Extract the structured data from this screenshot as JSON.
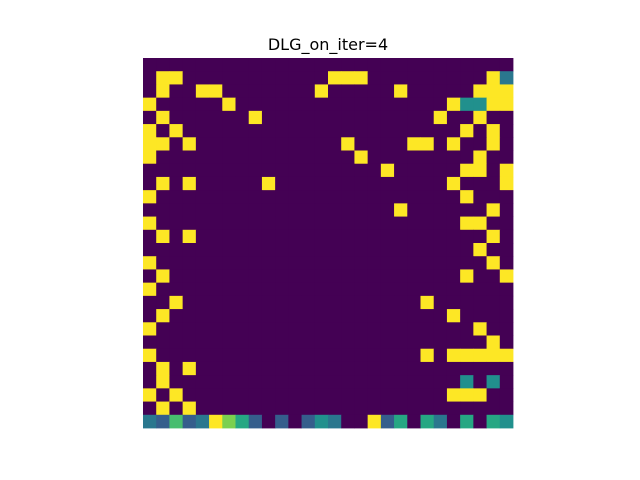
{
  "chart_data": {
    "type": "heatmap",
    "title": "DLG_on_iter=4",
    "xlabel": "",
    "ylabel": "",
    "axes_visible": false,
    "colormap": "viridis",
    "value_range": [
      0,
      1
    ],
    "rows": 28,
    "cols": 28,
    "values": [
      [
        0.0,
        0.0,
        0.0,
        0.0,
        0.0,
        0.0,
        0.0,
        0.0,
        0.0,
        0.0,
        0.0,
        0.0,
        0.0,
        0.0,
        0.0,
        0.0,
        0.0,
        0.0,
        0.0,
        0.0,
        0.0,
        0.0,
        0.0,
        0.0,
        0.0,
        0.0,
        0.0,
        0.0
      ],
      [
        0.0,
        1.0,
        1.0,
        0.0,
        0.0,
        0.0,
        0.0,
        0.0,
        0.0,
        0.0,
        0.0,
        0.0,
        0.0,
        0.0,
        1.0,
        1.0,
        1.0,
        0.0,
        0.0,
        0.0,
        0.0,
        0.0,
        0.0,
        0.0,
        0.0,
        0.0,
        1.0,
        0.4
      ],
      [
        0.0,
        1.0,
        0.0,
        0.0,
        1.0,
        1.0,
        0.0,
        0.0,
        0.0,
        0.0,
        0.0,
        0.0,
        0.0,
        1.0,
        0.0,
        0.0,
        0.0,
        0.0,
        0.0,
        1.0,
        0.0,
        0.0,
        0.0,
        0.0,
        0.0,
        1.0,
        1.0,
        1.0
      ],
      [
        1.0,
        0.0,
        0.0,
        0.0,
        0.0,
        0.0,
        1.0,
        0.0,
        0.0,
        0.0,
        0.0,
        0.0,
        0.0,
        0.0,
        0.0,
        0.0,
        0.0,
        0.0,
        0.0,
        0.0,
        0.0,
        0.0,
        0.0,
        1.0,
        0.5,
        0.5,
        1.0,
        1.0
      ],
      [
        0.0,
        1.0,
        0.0,
        0.0,
        0.0,
        0.0,
        0.0,
        0.0,
        1.0,
        0.0,
        0.0,
        0.0,
        0.0,
        0.0,
        0.0,
        0.0,
        0.0,
        0.0,
        0.0,
        0.0,
        0.0,
        0.0,
        1.0,
        0.0,
        0.0,
        1.0,
        0.0,
        0.0
      ],
      [
        1.0,
        0.0,
        1.0,
        0.0,
        0.0,
        0.0,
        0.0,
        0.0,
        0.0,
        0.0,
        0.0,
        0.0,
        0.0,
        0.0,
        0.0,
        0.0,
        0.0,
        0.0,
        0.0,
        0.0,
        0.0,
        0.0,
        0.0,
        0.0,
        1.0,
        0.0,
        1.0,
        0.0
      ],
      [
        1.0,
        1.0,
        0.0,
        1.0,
        0.0,
        0.0,
        0.0,
        0.0,
        0.0,
        0.0,
        0.0,
        0.0,
        0.0,
        0.0,
        0.0,
        1.0,
        0.0,
        0.0,
        0.0,
        0.0,
        1.0,
        1.0,
        0.0,
        1.0,
        0.0,
        0.0,
        1.0,
        0.0
      ],
      [
        1.0,
        0.0,
        0.0,
        0.0,
        0.0,
        0.0,
        0.0,
        0.0,
        0.0,
        0.0,
        0.0,
        0.0,
        0.0,
        0.0,
        0.0,
        0.0,
        1.0,
        0.0,
        0.0,
        0.0,
        0.0,
        0.0,
        0.0,
        0.0,
        0.0,
        1.0,
        0.0,
        0.0
      ],
      [
        0.0,
        0.0,
        0.0,
        0.0,
        0.0,
        0.0,
        0.0,
        0.0,
        0.0,
        0.0,
        0.0,
        0.0,
        0.0,
        0.0,
        0.0,
        0.0,
        0.0,
        0.0,
        1.0,
        0.0,
        0.0,
        0.0,
        0.0,
        0.0,
        1.0,
        1.0,
        0.0,
        1.0
      ],
      [
        0.0,
        1.0,
        0.0,
        1.0,
        0.0,
        0.0,
        0.0,
        0.0,
        0.0,
        1.0,
        0.0,
        0.0,
        0.0,
        0.0,
        0.0,
        0.0,
        0.0,
        0.0,
        0.0,
        0.0,
        0.0,
        0.0,
        0.0,
        1.0,
        0.0,
        0.0,
        0.0,
        1.0
      ],
      [
        1.0,
        0.0,
        0.0,
        0.0,
        0.0,
        0.0,
        0.0,
        0.0,
        0.0,
        0.0,
        0.0,
        0.0,
        0.0,
        0.0,
        0.0,
        0.0,
        0.0,
        0.0,
        0.0,
        0.0,
        0.0,
        0.0,
        0.0,
        0.0,
        1.0,
        0.0,
        0.0,
        0.0
      ],
      [
        0.0,
        0.0,
        0.0,
        0.0,
        0.0,
        0.0,
        0.0,
        0.0,
        0.0,
        0.0,
        0.0,
        0.0,
        0.0,
        0.0,
        0.0,
        0.0,
        0.0,
        0.0,
        0.0,
        1.0,
        0.0,
        0.0,
        0.0,
        0.0,
        0.0,
        0.0,
        1.0,
        0.0
      ],
      [
        1.0,
        0.0,
        0.0,
        0.0,
        0.0,
        0.0,
        0.0,
        0.0,
        0.0,
        0.0,
        0.0,
        0.0,
        0.0,
        0.0,
        0.0,
        0.0,
        0.0,
        0.0,
        0.0,
        0.0,
        0.0,
        0.0,
        0.0,
        0.0,
        1.0,
        1.0,
        0.0,
        0.0
      ],
      [
        0.0,
        1.0,
        0.0,
        1.0,
        0.0,
        0.0,
        0.0,
        0.0,
        0.0,
        0.0,
        0.0,
        0.0,
        0.0,
        0.0,
        0.0,
        0.0,
        0.0,
        0.0,
        0.0,
        0.0,
        0.0,
        0.0,
        0.0,
        0.0,
        0.0,
        0.0,
        1.0,
        0.0
      ],
      [
        0.0,
        0.0,
        0.0,
        0.0,
        0.0,
        0.0,
        0.0,
        0.0,
        0.0,
        0.0,
        0.0,
        0.0,
        0.0,
        0.0,
        0.0,
        0.0,
        0.0,
        0.0,
        0.0,
        0.0,
        0.0,
        0.0,
        0.0,
        0.0,
        0.0,
        1.0,
        0.0,
        0.0
      ],
      [
        1.0,
        0.0,
        0.0,
        0.0,
        0.0,
        0.0,
        0.0,
        0.0,
        0.0,
        0.0,
        0.0,
        0.0,
        0.0,
        0.0,
        0.0,
        0.0,
        0.0,
        0.0,
        0.0,
        0.0,
        0.0,
        0.0,
        0.0,
        0.0,
        0.0,
        0.0,
        1.0,
        0.0
      ],
      [
        0.0,
        1.0,
        0.0,
        0.0,
        0.0,
        0.0,
        0.0,
        0.0,
        0.0,
        0.0,
        0.0,
        0.0,
        0.0,
        0.0,
        0.0,
        0.0,
        0.0,
        0.0,
        0.0,
        0.0,
        0.0,
        0.0,
        0.0,
        0.0,
        1.0,
        0.0,
        0.0,
        1.0
      ],
      [
        1.0,
        0.0,
        0.0,
        0.0,
        0.0,
        0.0,
        0.0,
        0.0,
        0.0,
        0.0,
        0.0,
        0.0,
        0.0,
        0.0,
        0.0,
        0.0,
        0.0,
        0.0,
        0.0,
        0.0,
        0.0,
        0.0,
        0.0,
        0.0,
        0.0,
        0.0,
        0.0,
        0.0
      ],
      [
        0.0,
        0.0,
        1.0,
        0.0,
        0.0,
        0.0,
        0.0,
        0.0,
        0.0,
        0.0,
        0.0,
        0.0,
        0.0,
        0.0,
        0.0,
        0.0,
        0.0,
        0.0,
        0.0,
        0.0,
        0.0,
        1.0,
        0.0,
        0.0,
        0.0,
        0.0,
        0.0,
        0.0
      ],
      [
        0.0,
        1.0,
        0.0,
        0.0,
        0.0,
        0.0,
        0.0,
        0.0,
        0.0,
        0.0,
        0.0,
        0.0,
        0.0,
        0.0,
        0.0,
        0.0,
        0.0,
        0.0,
        0.0,
        0.0,
        0.0,
        0.0,
        0.0,
        1.0,
        0.0,
        0.0,
        0.0,
        0.0
      ],
      [
        1.0,
        0.0,
        0.0,
        0.0,
        0.0,
        0.0,
        0.0,
        0.0,
        0.0,
        0.0,
        0.0,
        0.0,
        0.0,
        0.0,
        0.0,
        0.0,
        0.0,
        0.0,
        0.0,
        0.0,
        0.0,
        0.0,
        0.0,
        0.0,
        0.0,
        1.0,
        0.0,
        0.0
      ],
      [
        0.0,
        0.0,
        0.0,
        0.0,
        0.0,
        0.0,
        0.0,
        0.0,
        0.0,
        0.0,
        0.0,
        0.0,
        0.0,
        0.0,
        0.0,
        0.0,
        0.0,
        0.0,
        0.0,
        0.0,
        0.0,
        0.0,
        0.0,
        0.0,
        0.0,
        0.0,
        1.0,
        0.0
      ],
      [
        1.0,
        0.0,
        0.0,
        0.0,
        0.0,
        0.0,
        0.0,
        0.0,
        0.0,
        0.0,
        0.0,
        0.0,
        0.0,
        0.0,
        0.0,
        0.0,
        0.0,
        0.0,
        0.0,
        0.0,
        0.0,
        1.0,
        0.0,
        1.0,
        1.0,
        1.0,
        1.0,
        1.0
      ],
      [
        0.0,
        1.0,
        0.0,
        1.0,
        0.0,
        0.0,
        0.0,
        0.0,
        0.0,
        0.0,
        0.0,
        0.0,
        0.0,
        0.0,
        0.0,
        0.0,
        0.0,
        0.0,
        0.0,
        0.0,
        0.0,
        0.0,
        0.0,
        0.0,
        0.0,
        0.0,
        0.0,
        0.0
      ],
      [
        0.0,
        1.0,
        0.0,
        0.0,
        0.0,
        0.0,
        0.0,
        0.0,
        0.0,
        0.0,
        0.0,
        0.0,
        0.0,
        0.0,
        0.0,
        0.0,
        0.0,
        0.0,
        0.0,
        0.0,
        0.0,
        0.0,
        0.0,
        0.0,
        0.5,
        0.0,
        0.5,
        0.0
      ],
      [
        1.0,
        0.0,
        1.0,
        0.0,
        0.0,
        0.0,
        0.0,
        0.0,
        0.0,
        0.0,
        0.0,
        0.0,
        0.0,
        0.0,
        0.0,
        0.0,
        0.0,
        0.0,
        0.0,
        0.0,
        0.0,
        0.0,
        0.0,
        1.0,
        1.0,
        1.0,
        0.0,
        0.0
      ],
      [
        0.0,
        1.0,
        0.0,
        1.0,
        0.0,
        0.0,
        0.0,
        0.0,
        0.0,
        0.0,
        0.0,
        0.0,
        0.0,
        0.0,
        0.0,
        0.0,
        0.0,
        0.0,
        0.0,
        0.0,
        0.0,
        0.0,
        0.0,
        0.0,
        0.0,
        0.0,
        0.0,
        0.0
      ],
      [
        0.4,
        0.3,
        0.7,
        0.3,
        0.4,
        1.0,
        0.8,
        0.6,
        0.3,
        0.0,
        0.3,
        0.0,
        0.3,
        0.5,
        0.4,
        0.0,
        0.0,
        1.0,
        0.3,
        0.6,
        0.0,
        0.6,
        0.4,
        0.0,
        0.6,
        0.0,
        0.6,
        0.5
      ]
    ]
  }
}
